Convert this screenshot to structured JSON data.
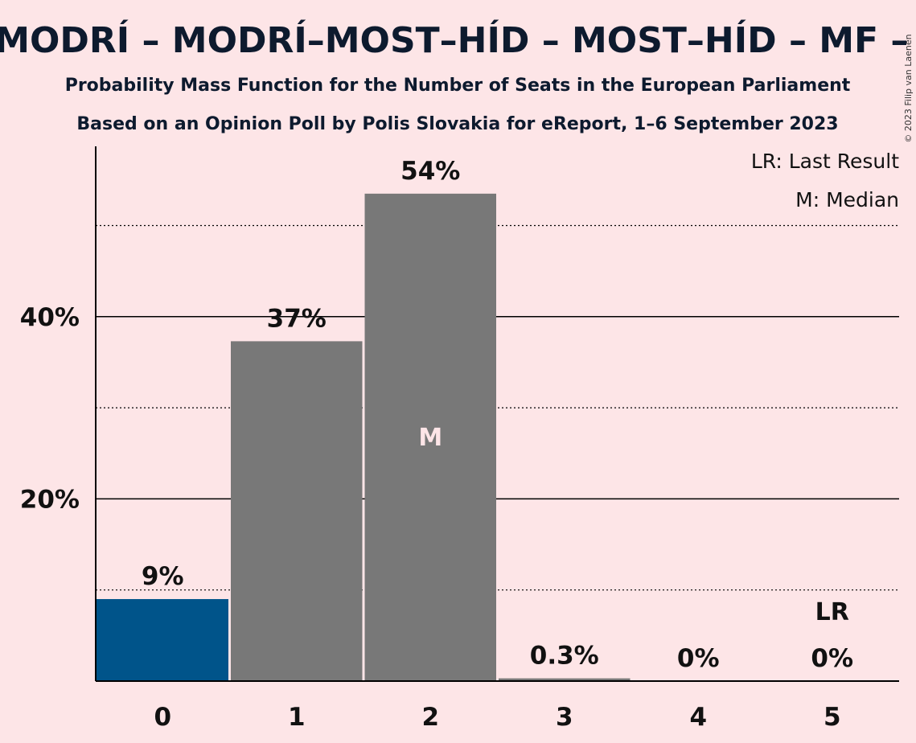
{
  "chart_data": {
    "type": "bar",
    "title": "– MODRÍ – MODRÍ–MOST–HÍD – MOST–HÍD – MF – O",
    "subtitle_1": "Probability Mass Function for the Number of Seats in the European Parliament",
    "subtitle_2": "Based on an Opinion Poll by Polis Slovakia for eReport, 1–6 September 2023",
    "categories": [
      "0",
      "1",
      "2",
      "3",
      "4",
      "5"
    ],
    "values": [
      9,
      37.3,
      53.5,
      0.3,
      0,
      0
    ],
    "data_labels": [
      "9%",
      "37%",
      "54%",
      "0.3%",
      "0%",
      "0%"
    ],
    "bar_colors": [
      "#00548a",
      "#787878",
      "#787878",
      "#787878",
      "#787878",
      "#787878"
    ],
    "y_ticks": [
      {
        "value": 20,
        "label": "20%"
      },
      {
        "value": 40,
        "label": "40%"
      }
    ],
    "minor_gridlines": [
      10,
      30,
      50
    ],
    "ylim": [
      0,
      58
    ],
    "median_index": 2,
    "median_marker": "M",
    "last_result_index": 5,
    "last_result_marker": "LR",
    "legend": {
      "last_result": "LR: Last Result",
      "median": "M: Median",
      "position": "top-right"
    },
    "copyright": "© 2023 Filip van Laenen"
  }
}
